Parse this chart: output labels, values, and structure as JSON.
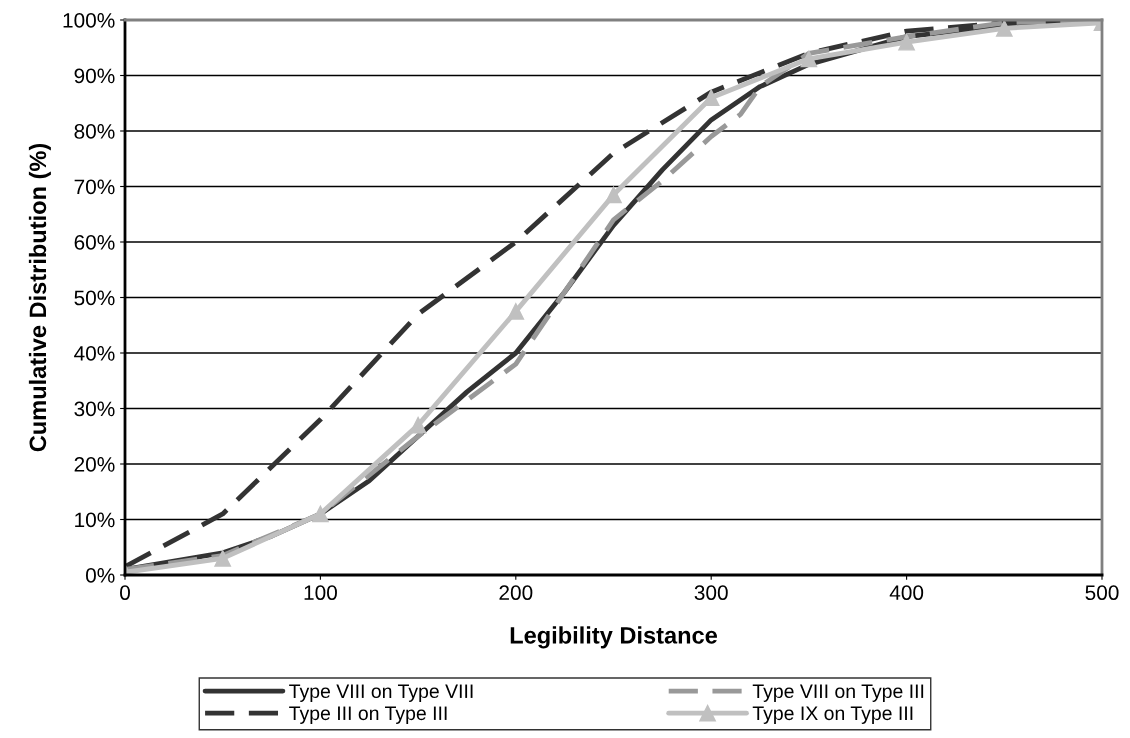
{
  "chart_data": {
    "type": "line",
    "xlabel": "Legibility Distance",
    "ylabel": "Cumulative Distribution (%)",
    "xlim": [
      0,
      500
    ],
    "xticks": [
      0,
      100,
      200,
      300,
      400,
      500
    ],
    "ylim": [
      0,
      100
    ],
    "yticks": [
      {
        "value": 0,
        "label": "0%"
      },
      {
        "value": 10,
        "label": "10%"
      },
      {
        "value": 20,
        "label": "20%"
      },
      {
        "value": 30,
        "label": "30%"
      },
      {
        "value": 40,
        "label": "40%"
      },
      {
        "value": 50,
        "label": "50%"
      },
      {
        "value": 60,
        "label": "60%"
      },
      {
        "value": 70,
        "label": "70%"
      },
      {
        "value": 80,
        "label": "80%"
      },
      {
        "value": 90,
        "label": "90%"
      },
      {
        "value": 100,
        "label": "100%"
      }
    ],
    "grid": "y",
    "legend": "bottom",
    "series": [
      {
        "name": "Type VIII on Type VIII",
        "color": "#333333",
        "line_style": "solid",
        "marker": "none",
        "x": [
          0,
          25,
          50,
          75,
          100,
          125,
          150,
          175,
          200,
          225,
          250,
          275,
          300,
          325,
          350,
          400,
          450,
          500
        ],
        "values": [
          1,
          2.5,
          4,
          7,
          11,
          17,
          25,
          33,
          40,
          51,
          63,
          73,
          82,
          88,
          92,
          97,
          99,
          100
        ]
      },
      {
        "name": "Type III on Type III",
        "color": "#333333",
        "line_style": "dashed",
        "marker": "none",
        "x": [
          0,
          50,
          100,
          150,
          200,
          250,
          300,
          350,
          400,
          450,
          500
        ],
        "values": [
          1.5,
          11,
          28,
          47,
          60,
          76,
          87,
          94,
          98,
          99.5,
          100
        ]
      },
      {
        "name": "Type VIII on Type III",
        "color": "#999999",
        "line_style": "dashed",
        "marker": "none",
        "x": [
          0,
          50,
          100,
          150,
          200,
          225,
          250,
          275,
          300,
          315,
          325,
          350,
          400,
          450,
          500
        ],
        "values": [
          1,
          3.5,
          11,
          25,
          38,
          51,
          64,
          71,
          79,
          83,
          88,
          94,
          97,
          99.5,
          100
        ]
      },
      {
        "name": "Type IX on Type III",
        "color": "#c0c0c0",
        "line_style": "solid",
        "marker": "triangle",
        "x": [
          0,
          50,
          100,
          150,
          200,
          250,
          300,
          350,
          400,
          450,
          500
        ],
        "values": [
          0.5,
          3,
          11,
          27,
          47.5,
          68.5,
          86,
          93,
          96,
          98.5,
          99.5
        ]
      }
    ]
  }
}
